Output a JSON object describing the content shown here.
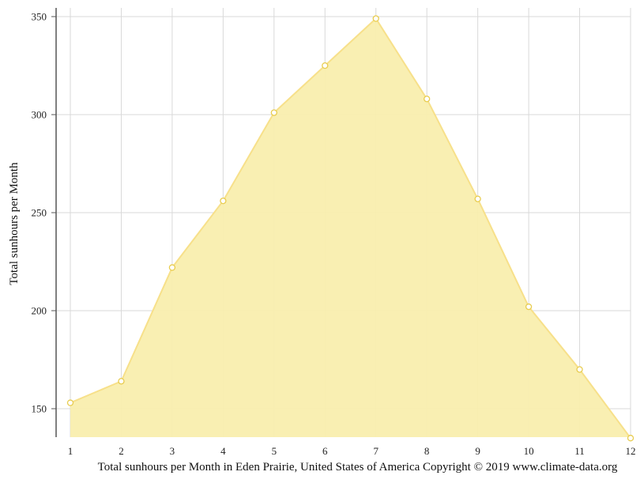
{
  "chart_data": {
    "type": "area",
    "x": [
      1,
      2,
      3,
      4,
      5,
      6,
      7,
      8,
      9,
      10,
      11,
      12
    ],
    "series": [
      {
        "values": [
          153,
          164,
          222,
          256,
          301,
          325,
          349,
          308,
          257,
          202,
          170,
          135
        ]
      }
    ],
    "xlabel": "",
    "ylabel": "Total sunhours per Month",
    "caption": "Total sunhours per Month in Eden Prairie, United States of America Copyright © 2019 www.climate-data.org",
    "yticks": [
      150,
      200,
      250,
      300,
      350
    ],
    "ylim": [
      135,
      350
    ],
    "grid": true,
    "colors": {
      "fill": "#f9eeae",
      "line": "#f7e08a",
      "marker_fill": "#ffffff",
      "marker_stroke": "#e8cc4e",
      "grid": "#d9d9d9",
      "axis": "#555555"
    }
  }
}
